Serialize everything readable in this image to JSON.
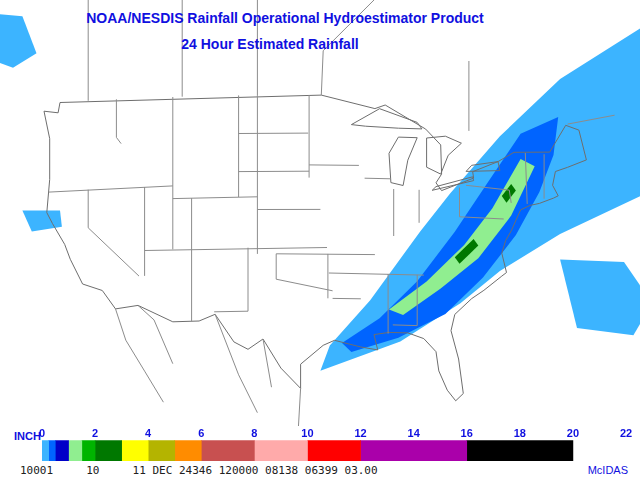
{
  "map": {
    "title": "NOAA/NESDIS Rainfall Operational Hydroestimator Product",
    "subtitle": "24 Hour Estimated Rainfall",
    "rain_areas": [
      {
        "inches": 0,
        "points": [
          [
            -95.3,
            27.3
          ],
          [
            -94.3,
            29.3
          ],
          [
            -90,
            32.9
          ],
          [
            -84.7,
            38.4
          ],
          [
            -81.5,
            41.5
          ],
          [
            -76.2,
            46.2
          ],
          [
            -69.8,
            51
          ],
          [
            -61.3,
            55.5
          ],
          [
            -58,
            55
          ],
          [
            -58,
            42
          ],
          [
            -61.3,
            42.3
          ],
          [
            -69.8,
            38.8
          ],
          [
            -76.2,
            35.6
          ],
          [
            -80.4,
            32.9
          ],
          [
            -86.8,
            29.7
          ]
        ]
      },
      {
        "inches": 0,
        "points": [
          [
            -131,
            56.5
          ],
          [
            -127,
            56
          ],
          [
            -125.5,
            53
          ],
          [
            -128,
            52
          ],
          [
            -131,
            53
          ]
        ]
      },
      {
        "inches": 0,
        "points": [
          [
            -127,
            40.7
          ],
          [
            -123,
            40.5
          ],
          [
            -122.8,
            39.2
          ],
          [
            -126,
            39
          ]
        ]
      },
      {
        "inches": 0,
        "points": [
          [
            -69.8,
            36.8
          ],
          [
            -63,
            37
          ],
          [
            -60,
            34
          ],
          [
            -62,
            31.3
          ],
          [
            -68,
            31.5
          ]
        ]
      },
      {
        "inches": 0.25,
        "points": [
          [
            -93,
            29.5
          ],
          [
            -89,
            31.5
          ],
          [
            -85,
            34.5
          ],
          [
            -81,
            38.5
          ],
          [
            -77.5,
            42.5
          ],
          [
            -74,
            46.5
          ],
          [
            -70,
            48
          ],
          [
            -70.5,
            45
          ],
          [
            -72,
            42
          ],
          [
            -74.5,
            38.5
          ],
          [
            -78,
            35
          ],
          [
            -82,
            32
          ],
          [
            -87,
            30
          ],
          [
            -92,
            28.8
          ]
        ]
      },
      {
        "inches": 1,
        "points": [
          [
            -88,
            32.2
          ],
          [
            -84,
            34.5
          ],
          [
            -80,
            37.5
          ],
          [
            -77,
            40.5
          ],
          [
            -74,
            44.5
          ],
          [
            -72.5,
            44
          ],
          [
            -75,
            40
          ],
          [
            -78.5,
            36.5
          ],
          [
            -82.5,
            34
          ],
          [
            -86.5,
            31.8
          ]
        ]
      },
      {
        "inches": 2,
        "points": [
          [
            -81,
            36.5
          ],
          [
            -79,
            38
          ],
          [
            -78.5,
            37.5
          ],
          [
            -80.5,
            36
          ]
        ]
      },
      {
        "inches": 2,
        "points": [
          [
            -76,
            41.5
          ],
          [
            -75,
            42.5
          ],
          [
            -74.5,
            42
          ],
          [
            -75.5,
            41
          ]
        ]
      }
    ]
  },
  "chart_data": {
    "type": "colorbar",
    "axis_label": "INCH",
    "bins": [
      0,
      0.25,
      0.5,
      1,
      1.5,
      2,
      3,
      4,
      5,
      6,
      8,
      10,
      12,
      16,
      20,
      22
    ],
    "colors": [
      "#3cb4ff",
      "#0064ff",
      "#0000c8",
      "#90ee90",
      "#00b400",
      "#007800",
      "#ffff00",
      "#b4b400",
      "#ff8c00",
      "#c85050",
      "#ffaaaa",
      "#ff0000",
      "#aa00aa",
      "#000000",
      "#ffffff"
    ],
    "xlim": [
      0,
      22
    ],
    "xticks": [
      0,
      2,
      4,
      6,
      8,
      10,
      12,
      14,
      16,
      18,
      20,
      22
    ]
  },
  "footer": {
    "fields": [
      "10001",
      "10",
      "11 DEC 24346 120000 08138 06399 03.00"
    ],
    "source": "McIDAS"
  }
}
